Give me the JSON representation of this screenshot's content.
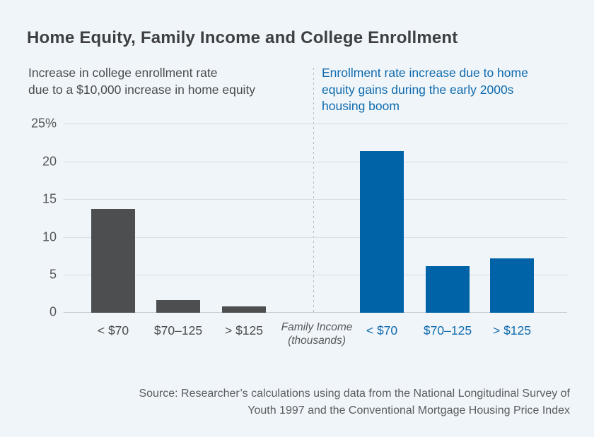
{
  "chart_data": {
    "type": "bar",
    "title": "Home Equity, Family Income and College Enrollment",
    "categories": [
      "< $70",
      "$70–125",
      "> $125"
    ],
    "series": [
      {
        "name": "Increase in college enrollment rate due to a $10,000 increase in home equity",
        "label_lines": [
          "Increase in college enrollment rate",
          "due to a $10,000 increase in home equity"
        ],
        "color": "#4d4e50",
        "label_color": "#4a4c4e",
        "values": [
          13.7,
          1.7,
          0.8
        ]
      },
      {
        "name": "Enrollment rate increase due to home equity gains during the early 2000s housing boom",
        "label_lines": [
          "Enrollment rate increase due to home",
          "equity gains during the early 2000s",
          "housing boom"
        ],
        "color": "#0063a8",
        "label_color": "#0e6aad",
        "values": [
          21.4,
          6.2,
          7.2
        ]
      }
    ],
    "y_axis": {
      "min": 0,
      "max": 25,
      "tick_step": 5,
      "tick_labels_top_down": [
        "25%",
        "20",
        "15",
        "10",
        "5",
        "0"
      ]
    },
    "x_axis_label_lines": [
      "Family Income",
      "(thousands)"
    ],
    "grid": true,
    "ylim": [
      0,
      25
    ],
    "legend_position": "subtitles-above-each-panel"
  },
  "source": {
    "lines": [
      "Source: Researcher’s calculations using data from the National Longitudinal Survey of",
      "Youth 1997 and the Conventional Mortgage Housing Price Index"
    ]
  },
  "colors": {
    "background": "#f0f5f9",
    "title": "#3d3f42",
    "dark_text": "#4a4c4e",
    "blue_text": "#0e6aad",
    "dark_bar": "#4d4e50",
    "blue_bar": "#0063a8",
    "gridline": "#dadde2",
    "baseline": "#c6cbd0",
    "axis_text": "#55575a",
    "divider": "#b6bcc3",
    "source_text": "#5a5c5f"
  }
}
